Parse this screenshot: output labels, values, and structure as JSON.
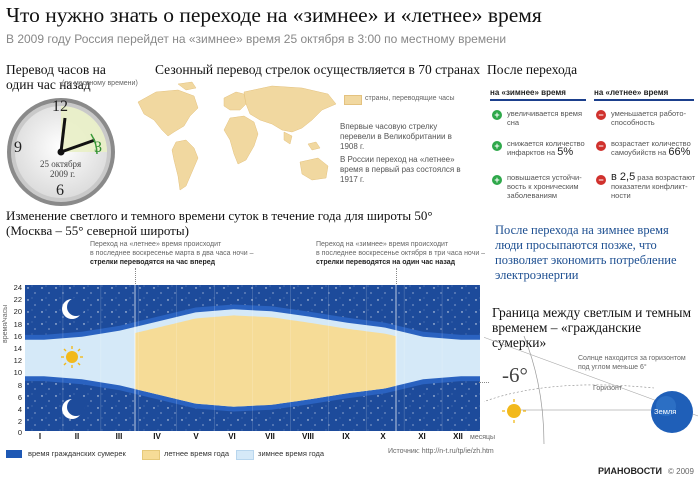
{
  "title": "Что нужно знать о переходе на «зимнее» и «летнее» время",
  "subtitle": "В 2009 году Россия перейдет на «зимнее» время 25 октября в 3:00 по местному времени",
  "clock": {
    "heading": "Перевод часов на один час назад",
    "note": "(по местному времени)",
    "n12": "12",
    "n9": "9",
    "n3": "3",
    "n6": "6",
    "date_line1": "25 октября",
    "date_line2": "2009 г."
  },
  "map": {
    "heading": "Сезонный перевод стрелок осуществляется в 70 странах",
    "legend": "страны, переводящие часы",
    "fact1": "Впервые часовую стрелку перевели в Великобритании в 1908 г.",
    "fact2": "В России переход на «летнее» время в первый раз состоялся в 1917 г."
  },
  "after": {
    "heading": "После перехода",
    "col_winter": "на «зимнее» время",
    "col_summer": "на «летнее» время",
    "winter_rows": [
      {
        "sign": "+",
        "text": "увеличивается время сна",
        "big": ""
      },
      {
        "sign": "+",
        "text": "снижается количество инфарктов на",
        "big": "5%"
      },
      {
        "sign": "+",
        "text": "повышается устойчи-вость к хроническим заболеваниям",
        "big": ""
      }
    ],
    "summer_rows": [
      {
        "sign": "−",
        "text": "уменьшается работо-способность",
        "big": ""
      },
      {
        "sign": "−",
        "text": "возрастает количество самоубийств на",
        "big": "66%"
      },
      {
        "sign": "−",
        "text": "раза возрастают показатели конфликт-ности",
        "big": "в 2,5"
      }
    ]
  },
  "wake_note": "После перехода на зимнее время люди просыпаются позже, что позволяет экономить потребление электроэнергии",
  "chart": {
    "heading": "Изменение светлого и темного времени суток в течение года для широты 50° (Москва – 55° северной широты)",
    "ylabel": "время/часы",
    "xlabel": "месяцы",
    "yticks": [
      "24",
      "22",
      "20",
      "18",
      "16",
      "14",
      "12",
      "10",
      "8",
      "6",
      "4",
      "2",
      "0"
    ],
    "months": [
      "I",
      "II",
      "III",
      "IV",
      "V",
      "VI",
      "VII",
      "VIII",
      "IX",
      "X",
      "XI",
      "XII"
    ],
    "ann_march_1": "Переход на «летнее» время происходит",
    "ann_march_2": "в последнее воскресенье марта в два часа ночи –",
    "ann_march_3": "стрелки переводятся на час вперед",
    "ann_oct_1": "Переход на «зимнее» время происходит",
    "ann_oct_2": "в последнее воскресенье октября в три часа ночи –",
    "ann_oct_3": "стрелки переводятся на один час назад",
    "legend": [
      "время гражданских сумерек",
      "летнее время года",
      "зимнее время года"
    ],
    "source": "Источник: http://n-t.ru/tp/ie/zh.htm",
    "colors": {
      "night": "#1d4b9b",
      "twilight": "#1e58b4",
      "summer": "#f6dc97",
      "winter": "#d5e9f8"
    }
  },
  "chart_data": {
    "type": "area",
    "title": "Изменение светлого и темного времени суток в течение года для широты 50° (Москва – 55° северной широты)",
    "xlabel": "месяцы",
    "ylabel": "время/часы",
    "categories": [
      "I",
      "II",
      "III",
      "IV",
      "V",
      "VI",
      "VII",
      "VIII",
      "IX",
      "X",
      "XI",
      "XII"
    ],
    "ylim": [
      0,
      24
    ],
    "series": [
      {
        "name": "зимнее время года",
        "values": [
          9.0,
          8.5,
          7.5,
          null,
          null,
          null,
          null,
          null,
          null,
          null,
          8.5,
          9.0
        ]
      },
      {
        "name": "летнее время года",
        "values": [
          null,
          null,
          null,
          6.0,
          4.5,
          4.0,
          4.3,
          5.2,
          6.2,
          7.0,
          null,
          null
        ]
      }
    ]
  },
  "civil": {
    "heading": "Граница между светлым и темным временем – «гражданские сумерки»",
    "angle": "-6°",
    "sun_text": "Солнце находится за горизонтом под углом меньше 6°",
    "horizon": "Горизонт",
    "earth": "Земля"
  },
  "footer": {
    "brand": "РИАНОВОСТИ",
    "copy": "© 2009"
  }
}
